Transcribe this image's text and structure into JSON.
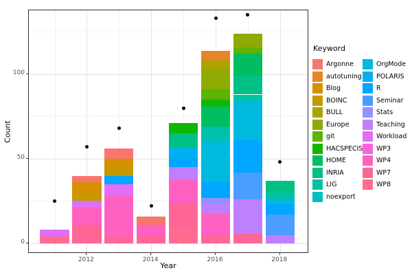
{
  "chart_data": {
    "type": "bar",
    "stacked": true,
    "title": "",
    "xlabel": "Year",
    "ylabel": "Count",
    "legend_title": "Keyword",
    "legend_position": "right",
    "grid": true,
    "x_ticks": [
      2012,
      2014,
      2016,
      2018
    ],
    "x_minor": [
      2011,
      2013,
      2015,
      2017
    ],
    "y_ticks": [
      0,
      50,
      100
    ],
    "y_minor": [
      25,
      75,
      125
    ],
    "xlim": [
      2010.2,
      2018.9
    ],
    "ylim": [
      -6.1,
      137.8
    ],
    "bar_width_years": 0.9,
    "keywords": [
      {
        "name": "Argonne",
        "color": "#F8766D"
      },
      {
        "name": "autotuning",
        "color": "#E88526"
      },
      {
        "name": "Blog",
        "color": "#D69100"
      },
      {
        "name": "BOINC",
        "color": "#C39B00"
      },
      {
        "name": "BULL",
        "color": "#A9A400"
      },
      {
        "name": "Europe",
        "color": "#8FAA00"
      },
      {
        "name": "git",
        "color": "#5CB300"
      },
      {
        "name": "HACSPECIS",
        "color": "#0FB702"
      },
      {
        "name": "HOME",
        "color": "#00BD5F"
      },
      {
        "name": "INRIA",
        "color": "#00C085"
      },
      {
        "name": "LIG",
        "color": "#00C0A8"
      },
      {
        "name": "noexport",
        "color": "#00BEC4"
      },
      {
        "name": "OrgMode",
        "color": "#00B9DF"
      },
      {
        "name": "POLARIS",
        "color": "#00B0F1"
      },
      {
        "name": "R",
        "color": "#00A6FF"
      },
      {
        "name": "Seminar",
        "color": "#4B9EFF"
      },
      {
        "name": "Stats",
        "color": "#9591FF"
      },
      {
        "name": "Teaching",
        "color": "#BF80FF"
      },
      {
        "name": "Workload",
        "color": "#E26EF7"
      },
      {
        "name": "WP3",
        "color": "#F763DF"
      },
      {
        "name": "WP4",
        "color": "#FF61C2"
      },
      {
        "name": "WP7",
        "color": "#FF6695"
      },
      {
        "name": "WP8",
        "color": "#FF6C90"
      }
    ],
    "bars": [
      {
        "year": 2011,
        "total": 8,
        "segments_bottom_to_top": [
          {
            "keyword": "WP8",
            "value": 4
          },
          {
            "keyword": "Workload",
            "value": 4
          }
        ]
      },
      {
        "year": 2012,
        "total": 40,
        "segments_bottom_to_top": [
          {
            "keyword": "WP7",
            "value": 11
          },
          {
            "keyword": "WP4",
            "value": 10
          },
          {
            "keyword": "Workload",
            "value": 4
          },
          {
            "keyword": "BOINC",
            "value": 4
          },
          {
            "keyword": "Blog",
            "value": 7
          },
          {
            "keyword": "Argonne",
            "value": 4
          }
        ]
      },
      {
        "year": 2013,
        "total": 56,
        "segments_bottom_to_top": [
          {
            "keyword": "WP7",
            "value": 4
          },
          {
            "keyword": "WP4",
            "value": 24
          },
          {
            "keyword": "Workload",
            "value": 7
          },
          {
            "keyword": "R",
            "value": 5
          },
          {
            "keyword": "BOINC",
            "value": 5
          },
          {
            "keyword": "Blog",
            "value": 5
          },
          {
            "keyword": "Argonne",
            "value": 6
          }
        ]
      },
      {
        "year": 2014,
        "total": 16,
        "segments_bottom_to_top": [
          {
            "keyword": "WP7",
            "value": 5
          },
          {
            "keyword": "WP4",
            "value": 6
          },
          {
            "keyword": "Argonne",
            "value": 5
          }
        ]
      },
      {
        "year": 2015,
        "total": 71,
        "segments_bottom_to_top": [
          {
            "keyword": "WP8",
            "value": 8
          },
          {
            "keyword": "WP7",
            "value": 16
          },
          {
            "keyword": "WP4",
            "value": 14
          },
          {
            "keyword": "Teaching",
            "value": 7
          },
          {
            "keyword": "R",
            "value": 5
          },
          {
            "keyword": "POLARIS",
            "value": 7
          },
          {
            "keyword": "INRIA",
            "value": 8
          },
          {
            "keyword": "HACSPECIS",
            "value": 6
          }
        ]
      },
      {
        "year": 2016,
        "total": 114,
        "segments_bottom_to_top": [
          {
            "keyword": "WP7",
            "value": 5
          },
          {
            "keyword": "WP4",
            "value": 13
          },
          {
            "keyword": "Teaching",
            "value": 5
          },
          {
            "keyword": "Stats",
            "value": 4
          },
          {
            "keyword": "R",
            "value": 9
          },
          {
            "keyword": "OrgMode",
            "value": 23
          },
          {
            "keyword": "noexport",
            "value": 3
          },
          {
            "keyword": "LIG",
            "value": 7
          },
          {
            "keyword": "HOME",
            "value": 12
          },
          {
            "keyword": "HACSPECIS",
            "value": 4
          },
          {
            "keyword": "git",
            "value": 6
          },
          {
            "keyword": "Europe",
            "value": 12
          },
          {
            "keyword": "BULL",
            "value": 5
          },
          {
            "keyword": "autotuning",
            "value": 6
          }
        ]
      },
      {
        "year": 2017,
        "total": 124,
        "segments_bottom_to_top": [
          {
            "keyword": "WP7",
            "value": 6
          },
          {
            "keyword": "Teaching",
            "value": 20
          },
          {
            "keyword": "Seminar",
            "value": 16
          },
          {
            "keyword": "R",
            "value": 19
          },
          {
            "keyword": "OrgMode",
            "value": 23
          },
          {
            "keyword": "LIG",
            "value": 4
          },
          {
            "keyword": "INRIA",
            "value": 11
          },
          {
            "keyword": "HOME",
            "value": 13
          },
          {
            "keyword": "git",
            "value": 4
          },
          {
            "keyword": "Europe",
            "value": 8
          }
        ]
      },
      {
        "year": 2018,
        "total": 37,
        "segments_bottom_to_top": [
          {
            "keyword": "Teaching",
            "value": 5
          },
          {
            "keyword": "Seminar",
            "value": 12
          },
          {
            "keyword": "R",
            "value": 6
          },
          {
            "keyword": "OrgMode",
            "value": 3
          },
          {
            "keyword": "LIG",
            "value": 4
          },
          {
            "keyword": "INRIA",
            "value": 7
          }
        ]
      }
    ],
    "points": {
      "marker": "circle",
      "color": "#000000",
      "values": [
        {
          "year": 2011,
          "value": 25
        },
        {
          "year": 2012,
          "value": 57
        },
        {
          "year": 2013,
          "value": 68
        },
        {
          "year": 2014,
          "value": 22
        },
        {
          "year": 2015,
          "value": 80
        },
        {
          "year": 2016,
          "value": 133
        },
        {
          "year": 2017,
          "value": 135
        },
        {
          "year": 2018,
          "value": 48
        }
      ]
    },
    "colors_meta": {
      "panel_background": "#FFFFFF",
      "panel_border": "#2F2F2F",
      "grid_major": "#E3E3E3",
      "grid_minor": "#F1F1F1",
      "tick_text": "#4D4D4D"
    }
  }
}
